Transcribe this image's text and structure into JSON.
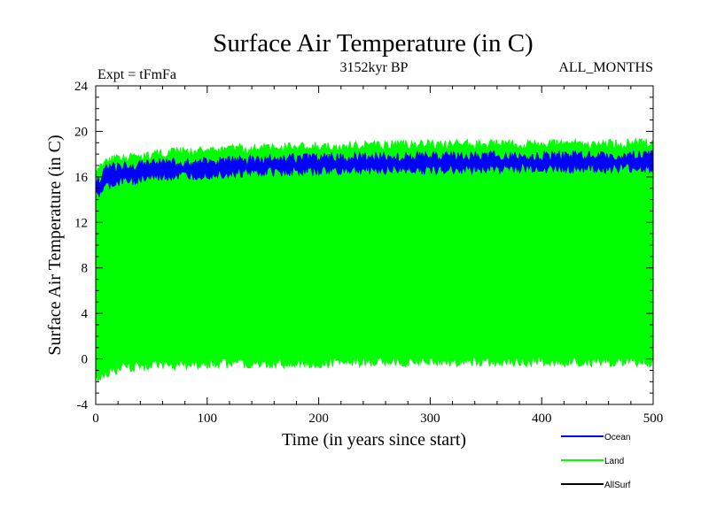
{
  "chart_data": {
    "type": "line",
    "title": "Surface Air Temperature (in C)",
    "subtitle_left": "Expt = tFmFa",
    "subtitle_center": "3152kyr BP",
    "subtitle_right": "ALL_MONTHS",
    "xlabel": "Time (in years since start)",
    "ylabel": "Surface Air Temperature (in C)",
    "xlim": [
      0,
      500
    ],
    "ylim": [
      -4,
      24
    ],
    "xticks": [
      0,
      100,
      200,
      300,
      400,
      500
    ],
    "yticks": [
      -4,
      0,
      4,
      8,
      12,
      16,
      20,
      24
    ],
    "grid": false,
    "legend_position": "bottom-right",
    "series": [
      {
        "name": "Ocean",
        "color": "#0000ff",
        "x": [
          0,
          10,
          25,
          50,
          100,
          150,
          200,
          250,
          300,
          350,
          400,
          450,
          500
        ],
        "upper": [
          15.8,
          17.2,
          17.4,
          17.6,
          17.8,
          18.0,
          18.1,
          18.2,
          18.2,
          18.3,
          18.3,
          18.3,
          18.4
        ],
        "lower": [
          13.8,
          14.8,
          15.2,
          15.5,
          15.8,
          16.0,
          16.1,
          16.2,
          16.2,
          16.3,
          16.3,
          16.3,
          16.3
        ]
      },
      {
        "name": "Land",
        "color": "#00ff00",
        "x": [
          0,
          10,
          25,
          50,
          100,
          150,
          200,
          250,
          300,
          350,
          400,
          450,
          500
        ],
        "upper": [
          16.8,
          17.8,
          18.1,
          18.4,
          18.8,
          19.0,
          19.1,
          19.2,
          19.3,
          19.3,
          19.3,
          19.3,
          19.4
        ],
        "lower": [
          -2.5,
          -1.6,
          -1.2,
          -1.0,
          -0.9,
          -0.8,
          -0.8,
          -0.7,
          -0.7,
          -0.7,
          -0.7,
          -0.7,
          -0.7
        ]
      },
      {
        "name": "AllSurf",
        "color": "#000000",
        "x": [],
        "upper": [],
        "lower": []
      }
    ]
  }
}
